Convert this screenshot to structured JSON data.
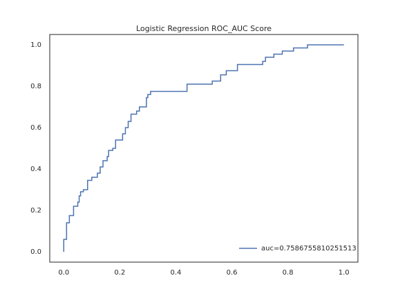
{
  "chart_data": {
    "type": "line",
    "title": "Logistic Regression ROC_AUC Score",
    "x": [
      0,
      0,
      0.01,
      0.01,
      0.02,
      0.02,
      0.035,
      0.035,
      0.05,
      0.05,
      0.055,
      0.055,
      0.06,
      0.06,
      0.07,
      0.07,
      0.085,
      0.085,
      0.1,
      0.1,
      0.12,
      0.12,
      0.13,
      0.13,
      0.14,
      0.14,
      0.155,
      0.155,
      0.16,
      0.16,
      0.175,
      0.175,
      0.185,
      0.185,
      0.21,
      0.21,
      0.22,
      0.22,
      0.23,
      0.23,
      0.24,
      0.24,
      0.26,
      0.26,
      0.27,
      0.27,
      0.295,
      0.295,
      0.3,
      0.3,
      0.31,
      0.31,
      0.44,
      0.44,
      0.53,
      0.53,
      0.56,
      0.56,
      0.58,
      0.58,
      0.62,
      0.62,
      0.71,
      0.71,
      0.72,
      0.72,
      0.75,
      0.75,
      0.78,
      0.78,
      0.82,
      0.82,
      0.87,
      0.87,
      1.0
    ],
    "series": [
      {
        "name": "auc=0.7586755810251513",
        "color": "#4c72b0",
        "values": [
          0,
          0.06,
          0.06,
          0.14,
          0.14,
          0.175,
          0.175,
          0.22,
          0.22,
          0.24,
          0.24,
          0.27,
          0.27,
          0.29,
          0.29,
          0.3,
          0.3,
          0.345,
          0.345,
          0.36,
          0.36,
          0.38,
          0.38,
          0.41,
          0.41,
          0.44,
          0.44,
          0.46,
          0.46,
          0.49,
          0.49,
          0.5,
          0.5,
          0.54,
          0.54,
          0.57,
          0.57,
          0.6,
          0.6,
          0.63,
          0.63,
          0.665,
          0.665,
          0.68,
          0.68,
          0.7,
          0.7,
          0.745,
          0.745,
          0.76,
          0.76,
          0.775,
          0.775,
          0.81,
          0.81,
          0.825,
          0.825,
          0.855,
          0.855,
          0.875,
          0.875,
          0.905,
          0.905,
          0.92,
          0.92,
          0.94,
          0.94,
          0.955,
          0.955,
          0.97,
          0.97,
          0.985,
          0.985,
          1.0,
          1.0
        ]
      }
    ],
    "xlim": [
      -0.05,
      1.05
    ],
    "ylim": [
      -0.05,
      1.05
    ],
    "xticks": [
      {
        "value": 0,
        "label": "0.0"
      },
      0.2,
      0.4,
      0.6,
      0.8,
      {
        "value": 1,
        "label": "1.0"
      }
    ],
    "yticks": [
      {
        "value": 0,
        "label": "0.0"
      },
      0.2,
      0.4,
      0.6,
      0.8,
      {
        "value": 1,
        "label": "1.0"
      }
    ],
    "grid": false,
    "legend": "lower right"
  }
}
